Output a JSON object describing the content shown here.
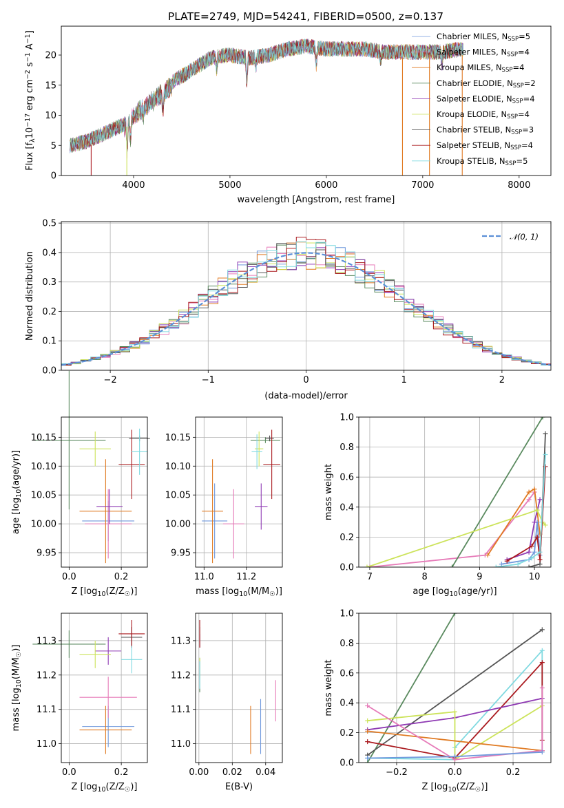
{
  "figure": {
    "title": "PLATE=2749, MJD=54241, FIBERID=0500, z=0.137"
  },
  "colors": {
    "Chabrier MILES": "#6f98dc",
    "Salpeter MILES": "#e67ab8",
    "Kroupa MILES": "#e07a22",
    "Chabrier ELODIE": "#5a8a5f",
    "Salpeter ELODIE": "#8e39b3",
    "Kroupa ELODIE": "#cce35a",
    "Chabrier STELIB": "#555555",
    "Salpeter STELIB": "#aa1a1f",
    "Kroupa STELIB": "#7fd9e0"
  },
  "legend_spectrum": [
    {
      "model": "Chabrier MILES",
      "text": "Chabrier MILES, N",
      "sub": "SSP",
      "tail": "=5"
    },
    {
      "model": "Salpeter MILES",
      "text": "Salpeter MILES, N",
      "sub": "SSP",
      "tail": "=4"
    },
    {
      "model": "Kroupa MILES",
      "text": "Kroupa MILES, N",
      "sub": "SSP",
      "tail": "=4"
    },
    {
      "model": "Chabrier ELODIE",
      "text": "Chabrier ELODIE, N",
      "sub": "SSP",
      "tail": "=2"
    },
    {
      "model": "Salpeter ELODIE",
      "text": "Salpeter ELODIE, N",
      "sub": "SSP",
      "tail": "=4"
    },
    {
      "model": "Kroupa ELODIE",
      "text": "Kroupa ELODIE, N",
      "sub": "SSP",
      "tail": "=4"
    },
    {
      "model": "Chabrier STELIB",
      "text": "Chabrier STELIB, N",
      "sub": "SSP",
      "tail": "=3"
    },
    {
      "model": "Salpeter STELIB",
      "text": "Salpeter STELIB, N",
      "sub": "SSP",
      "tail": "=4"
    },
    {
      "model": "Kroupa STELIB",
      "text": "Kroupa STELIB, N",
      "sub": "SSP",
      "tail": "=5"
    }
  ],
  "legend_residual": {
    "label": "𝒩(0, 1)",
    "color": "#5b8fd6"
  },
  "chart_data": [
    {
      "id": "spectrum",
      "type": "line",
      "xlabel": "wavelength [Angstrom, rest frame]",
      "ylabel_parts": [
        "Flux [f",
        "λ",
        "10",
        "−17",
        " erg cm",
        "−2",
        " s",
        "−1",
        " A",
        "−1",
        "]"
      ],
      "xlim": [
        3250,
        8330
      ],
      "ylim": [
        0,
        24.8
      ],
      "xticks": [
        4000,
        5000,
        6000,
        7000,
        8000
      ],
      "yticks": [
        0,
        5,
        10,
        15,
        20
      ],
      "grid": false,
      "legend": "top-right",
      "x_range": [
        3340,
        7420
      ],
      "flux_envelope": {
        "wavelength": [
          3340,
          3500,
          3700,
          3900,
          4000,
          4200,
          4400,
          4600,
          4800,
          5000,
          5200,
          5400,
          5600,
          5800,
          6000,
          6200,
          6400,
          6600,
          6800,
          7000,
          7200,
          7420
        ],
        "flux": [
          5.0,
          5.6,
          7.0,
          8.5,
          10.5,
          13.0,
          15.5,
          17.5,
          19.5,
          20.0,
          19.5,
          20.0,
          21.0,
          21.5,
          21.0,
          21.0,
          21.0,
          20.5,
          20.5,
          20.5,
          20.5,
          21.0
        ]
      },
      "dropouts": [
        3560,
        3930,
        6790,
        7070,
        7410
      ]
    },
    {
      "id": "residuals",
      "type": "histogram",
      "xlabel": "(data-model)/error",
      "ylabel": "Normed distribution",
      "xlim": [
        -2.5,
        2.5
      ],
      "ylim": [
        0,
        0.505
      ],
      "xticks": [
        -2,
        -1,
        0,
        1,
        2
      ],
      "yticks": [
        0.0,
        0.1,
        0.2,
        0.3,
        0.4,
        0.5
      ],
      "grid": true,
      "legend": "top-right",
      "bin_width": 0.1,
      "bins_from": -2.5,
      "series_note": "one step histogram per model, roughly N(0,1)",
      "gaussian": {
        "mu": 0,
        "sigma": 1
      }
    },
    {
      "id": "age_vs_Z",
      "type": "scatter",
      "xlabel_parts": [
        "Z [log",
        "10",
        "(Z/Z",
        "☉",
        ")]"
      ],
      "ylabel_parts": [
        "age  [log",
        "10",
        "(age/yr)]"
      ],
      "xlim": [
        -0.03,
        0.3
      ],
      "ylim": [
        9.925,
        10.185
      ],
      "xticks": [
        0.0,
        0.2
      ],
      "yticks": [
        9.95,
        10.0,
        10.05,
        10.1,
        10.15
      ],
      "grid": true,
      "points": [
        {
          "model": "Chabrier MILES",
          "x": 0.15,
          "y": 10.005,
          "xerr": 0.1,
          "yerr": 0.035
        },
        {
          "model": "Salpeter MILES",
          "x": 0.15,
          "y": 10.0,
          "xerr": 0.09,
          "yerr": 0.06
        },
        {
          "model": "Kroupa MILES",
          "x": 0.14,
          "y": 10.022,
          "xerr": 0.1,
          "yerr": 0.09
        },
        {
          "model": "Chabrier ELODIE",
          "x": 0.0,
          "y": 10.145,
          "xerr": 0.14,
          "yerr": 0.12
        },
        {
          "model": "Salpeter ELODIE",
          "x": 0.155,
          "y": 10.03,
          "xerr": 0.05,
          "yerr": 0.03
        },
        {
          "model": "Kroupa ELODIE",
          "x": 0.1,
          "y": 10.13,
          "xerr": 0.06,
          "yerr": 0.03
        },
        {
          "model": "Chabrier STELIB",
          "x": 0.27,
          "y": 10.148,
          "xerr": 0.04,
          "yerr": 0.005
        },
        {
          "model": "Salpeter STELIB",
          "x": 0.24,
          "y": 10.103,
          "xerr": 0.05,
          "yerr": 0.06
        },
        {
          "model": "Kroupa STELIB",
          "x": 0.27,
          "y": 10.125,
          "xerr": 0.03,
          "yerr": 0.04
        }
      ]
    },
    {
      "id": "age_vs_mass",
      "type": "scatter",
      "xlabel_parts": [
        "mass [log",
        "10",
        "(M/M",
        "☉",
        ")]"
      ],
      "ylabel_parts": [],
      "xlim": [
        10.96,
        11.37
      ],
      "ylim": [
        9.925,
        10.185
      ],
      "xticks": [
        11.0,
        11.2
      ],
      "yticks": [
        9.95,
        10.0,
        10.05,
        10.1,
        10.15
      ],
      "grid": true,
      "points": [
        {
          "model": "Chabrier MILES",
          "x": 11.05,
          "y": 10.005,
          "xerr": 0.06,
          "yerr": 0.065
        },
        {
          "model": "Salpeter MILES",
          "x": 11.14,
          "y": 10.0,
          "xerr": 0.05,
          "yerr": 0.06
        },
        {
          "model": "Kroupa MILES",
          "x": 11.04,
          "y": 10.022,
          "xerr": 0.05,
          "yerr": 0.09
        },
        {
          "model": "Chabrier ELODIE",
          "x": 11.29,
          "y": 10.145,
          "xerr": 0.07,
          "yerr": 0.005
        },
        {
          "model": "Salpeter ELODIE",
          "x": 11.27,
          "y": 10.03,
          "xerr": 0.03,
          "yerr": 0.04
        },
        {
          "model": "Kroupa ELODIE",
          "x": 11.26,
          "y": 10.13,
          "xerr": 0.02,
          "yerr": 0.03
        },
        {
          "model": "Chabrier STELIB",
          "x": 11.31,
          "y": 10.148,
          "xerr": 0.02,
          "yerr": 0.005
        },
        {
          "model": "Salpeter STELIB",
          "x": 11.32,
          "y": 10.103,
          "xerr": 0.04,
          "yerr": 0.06
        },
        {
          "model": "Kroupa STELIB",
          "x": 11.25,
          "y": 10.125,
          "xerr": 0.025,
          "yerr": 0.03
        }
      ]
    },
    {
      "id": "weight_vs_age",
      "type": "line",
      "xlabel_parts": [
        "age  [log",
        "10",
        "(age/yr)]"
      ],
      "ylabel": "mass weight",
      "xlim": [
        6.8,
        10.3
      ],
      "ylim": [
        0,
        1.0
      ],
      "xticks": [
        7,
        8,
        9,
        10
      ],
      "yticks": [
        0.0,
        0.2,
        0.4,
        0.6,
        0.8,
        1.0
      ],
      "grid": true,
      "series": [
        {
          "model": "Salpeter MILES",
          "x": [
            7.0,
            9.1,
            9.9,
            10.0
          ],
          "y": [
            0.0,
            0.08,
            0.45,
            0.5
          ]
        },
        {
          "model": "Kroupa MILES",
          "x": [
            9.15,
            9.9,
            10.0,
            10.1
          ],
          "y": [
            0.08,
            0.5,
            0.52,
            0.22
          ]
        },
        {
          "model": "Chabrier MILES",
          "x": [
            9.4,
            9.9,
            10.0,
            10.05,
            10.1
          ],
          "y": [
            0.02,
            0.05,
            0.1,
            0.3,
            0.08
          ]
        },
        {
          "model": "Chabrier ELODIE",
          "x": [
            8.5,
            10.15
          ],
          "y": [
            0.0,
            1.0
          ]
        },
        {
          "model": "Salpeter ELODIE",
          "x": [
            9.5,
            9.9,
            10.0,
            10.1
          ],
          "y": [
            0.05,
            0.1,
            0.3,
            0.45
          ]
        },
        {
          "model": "Kroupa ELODIE",
          "x": [
            6.95,
            10.05,
            10.15,
            10.2
          ],
          "y": [
            0.0,
            0.38,
            0.3,
            0.28
          ]
        },
        {
          "model": "Chabrier STELIB",
          "x": [
            9.9,
            10.1,
            10.2
          ],
          "y": [
            0.0,
            0.02,
            0.89
          ]
        },
        {
          "model": "Salpeter STELIB",
          "x": [
            9.5,
            9.95,
            10.05,
            10.1,
            10.2
          ],
          "y": [
            0.04,
            0.14,
            0.2,
            0.05,
            0.67
          ]
        },
        {
          "model": "Kroupa STELIB",
          "x": [
            9.3,
            9.7,
            9.95,
            10.1,
            10.2
          ],
          "y": [
            0.0,
            0.02,
            0.06,
            0.1,
            0.75
          ]
        }
      ]
    },
    {
      "id": "mass_vs_Z",
      "type": "scatter",
      "xlabel_parts": [
        "Z [log",
        "10",
        "(Z/Z",
        "☉",
        ")]"
      ],
      "ylabel_parts": [
        "mass [log",
        "10",
        "(M/M",
        "☉",
        ")]"
      ],
      "xlim": [
        -0.03,
        0.3
      ],
      "ylim": [
        10.945,
        11.38
      ],
      "xticks": [
        0.0,
        0.2
      ],
      "yticks": [
        11.0,
        11.1,
        11.2,
        11.3
      ],
      "grid": true,
      "points": [
        {
          "model": "Chabrier MILES",
          "x": 0.15,
          "y": 11.05,
          "xerr": 0.1,
          "yerr": 0.06
        },
        {
          "model": "Salpeter MILES",
          "x": 0.15,
          "y": 11.135,
          "xerr": 0.11,
          "yerr": 0.06
        },
        {
          "model": "Kroupa MILES",
          "x": 0.14,
          "y": 11.04,
          "xerr": 0.1,
          "yerr": 0.07
        },
        {
          "model": "Chabrier ELODIE",
          "x": 0.0,
          "y": 11.29,
          "xerr": 0.14,
          "yerr": 0.04
        },
        {
          "model": "Salpeter ELODIE",
          "x": 0.15,
          "y": 11.27,
          "xerr": 0.05,
          "yerr": 0.04
        },
        {
          "model": "Kroupa ELODIE",
          "x": 0.1,
          "y": 11.26,
          "xerr": 0.06,
          "yerr": 0.04
        },
        {
          "model": "Chabrier STELIB",
          "x": 0.24,
          "y": 11.31,
          "xerr": 0.04,
          "yerr": 0.03
        },
        {
          "model": "Salpeter STELIB",
          "x": 0.24,
          "y": 11.32,
          "xerr": 0.05,
          "yerr": 0.04
        },
        {
          "model": "Kroupa STELIB",
          "x": 0.24,
          "y": 11.245,
          "xerr": 0.04,
          "yerr": 0.04
        }
      ]
    },
    {
      "id": "mass_vs_EBV",
      "type": "scatter",
      "xlabel": "E(B-V)",
      "xlim": [
        -0.002,
        0.05
      ],
      "ylim": [
        10.945,
        11.38
      ],
      "xticks": [
        0.0,
        0.02,
        0.04
      ],
      "yticks": [
        11.0,
        11.1,
        11.2,
        11.3
      ],
      "grid": true,
      "points": [
        {
          "model": "Chabrier MILES",
          "x": 0.037,
          "y": 11.05,
          "xerr": 0,
          "yerr": 0.08
        },
        {
          "model": "Salpeter MILES",
          "x": 0.046,
          "y": 11.125,
          "xerr": 0,
          "yerr": 0.06
        },
        {
          "model": "Kroupa MILES",
          "x": 0.031,
          "y": 11.04,
          "xerr": 0,
          "yerr": 0.07
        },
        {
          "model": "Chabrier ELODIE",
          "x": 0.0005,
          "y": 11.2,
          "xerr": 0,
          "yerr": 0.05
        },
        {
          "model": "Salpeter ELODIE",
          "x": 0.0005,
          "y": 11.3,
          "xerr": 0,
          "yerr": 0.02
        },
        {
          "model": "Kroupa ELODIE",
          "x": 0.0005,
          "y": 11.22,
          "xerr": 0,
          "yerr": 0.03
        },
        {
          "model": "Chabrier STELIB",
          "x": 0.0005,
          "y": 11.31,
          "xerr": 0,
          "yerr": 0.03
        },
        {
          "model": "Salpeter STELIB",
          "x": 0.0005,
          "y": 11.32,
          "xerr": 0,
          "yerr": 0.04
        },
        {
          "model": "Kroupa STELIB",
          "x": 0.0005,
          "y": 11.2,
          "xerr": 0,
          "yerr": 0.04
        }
      ]
    },
    {
      "id": "weight_vs_Z",
      "type": "line",
      "xlabel_parts": [
        "Z [log",
        "10",
        "(Z/Z",
        "☉",
        ")]"
      ],
      "ylabel": "mass weight",
      "xlim": [
        -0.33,
        0.33
      ],
      "ylim": [
        0,
        1.0
      ],
      "xticks": [
        -0.2,
        0.0,
        0.2
      ],
      "yticks": [
        0.0,
        0.2,
        0.4,
        0.6,
        0.8,
        1.0
      ],
      "grid": true,
      "series": [
        {
          "model": "Chabrier ELODIE",
          "x": [
            -0.3,
            0.0
          ],
          "y": [
            0.0,
            1.0
          ]
        },
        {
          "model": "Chabrier STELIB",
          "x": [
            -0.3,
            0.3
          ],
          "y": [
            0.05,
            0.89
          ]
        },
        {
          "model": "Kroupa STELIB",
          "x": [
            -0.3,
            0.0,
            0.0,
            0.3,
            0.3
          ],
          "y": [
            0.03,
            0.02,
            0.1,
            0.75,
            0.08
          ]
        },
        {
          "model": "Salpeter STELIB",
          "x": [
            -0.3,
            0.0,
            0.3,
            0.3
          ],
          "y": [
            0.14,
            0.03,
            0.67,
            0.15
          ]
        },
        {
          "model": "Salpeter ELODIE",
          "x": [
            -0.3,
            0.0,
            0.3
          ],
          "y": [
            0.22,
            0.3,
            0.43
          ]
        },
        {
          "model": "Kroupa ELODIE",
          "x": [
            -0.3,
            0.0,
            0.0,
            0.3
          ],
          "y": [
            0.28,
            0.34,
            0.02,
            0.38
          ]
        },
        {
          "model": "Kroupa MILES",
          "x": [
            -0.3,
            0.3
          ],
          "y": [
            0.21,
            0.08
          ]
        },
        {
          "model": "Salpeter MILES",
          "x": [
            -0.3,
            0.0,
            0.3,
            0.3
          ],
          "y": [
            0.38,
            0.02,
            0.08,
            0.5
          ]
        },
        {
          "model": "Chabrier MILES",
          "x": [
            -0.3,
            0.0,
            0.3
          ],
          "y": [
            0.03,
            0.04,
            0.07
          ]
        }
      ]
    }
  ]
}
